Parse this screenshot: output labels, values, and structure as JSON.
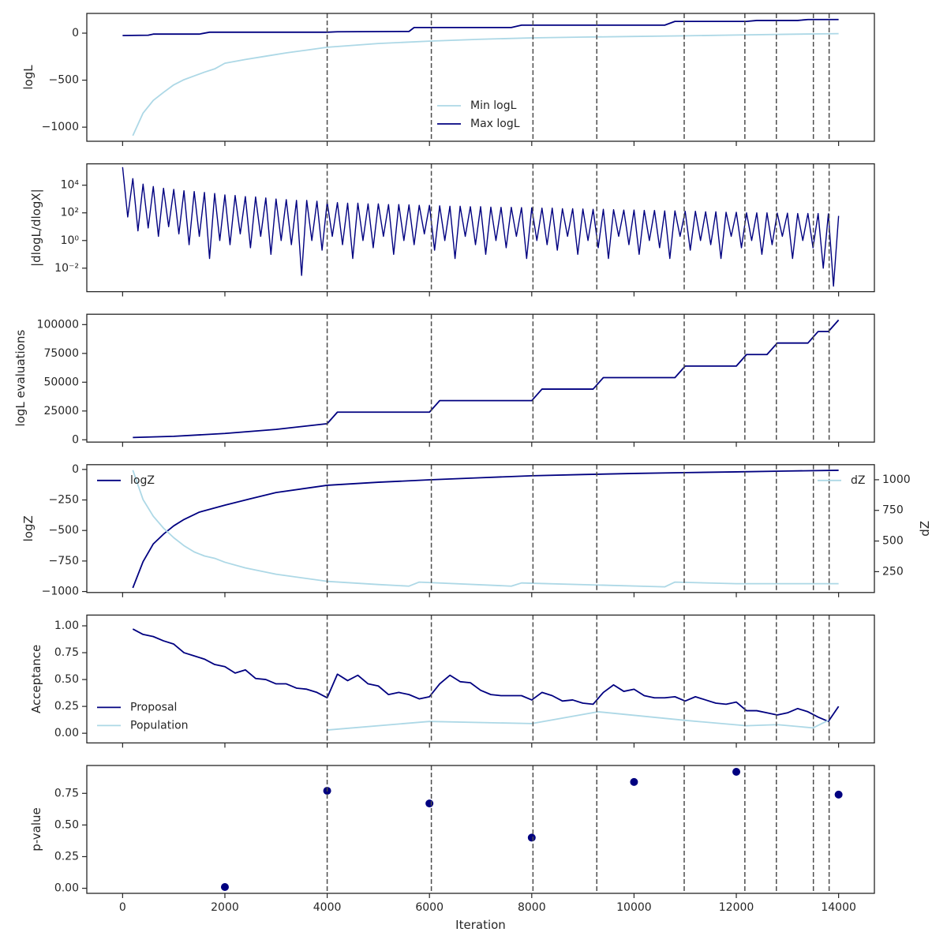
{
  "chart_data": [
    {
      "type": "line",
      "ylabel": "logL",
      "xlim": [
        -700,
        14700
      ],
      "xticks": [
        0,
        2000,
        4000,
        6000,
        8000,
        10000,
        12000,
        14000
      ],
      "ylim": [
        -1150,
        210
      ],
      "yticks": [
        {
          "value": -1000,
          "label": "−1000"
        },
        {
          "value": -500,
          "label": "−500"
        },
        0
      ],
      "vlines": [
        4000,
        6037,
        8024,
        9272,
        10981,
        12167,
        12783,
        13507,
        13815
      ],
      "vline_color": "#4d4d4d",
      "legend": "lower center",
      "series": [
        {
          "name": "Min logL",
          "color": "#add8e6",
          "x": [
            200,
            400,
            600,
            800,
            1000,
            1200,
            1400,
            1600,
            1800,
            2000,
            2400,
            2800,
            3200,
            3600,
            4000,
            5000,
            6000,
            7000,
            8000,
            9000,
            10000,
            11000,
            12000,
            13000,
            14000
          ],
          "values": [
            -1090,
            -850,
            -715,
            -630,
            -550,
            -495,
            -455,
            -415,
            -380,
            -320,
            -280,
            -245,
            -210,
            -180,
            -150,
            -110,
            -85,
            -65,
            -50,
            -42,
            -35,
            -28,
            -20,
            -12,
            -5
          ]
        },
        {
          "name": "Max logL",
          "color": "#000080",
          "x": [
            0,
            500,
            600,
            1500,
            1700,
            4000,
            4200,
            5600,
            5700,
            7600,
            7800,
            10600,
            10800,
            12200,
            12400,
            13200,
            13400,
            14000
          ],
          "values": [
            -25,
            -22,
            -10,
            -10,
            10,
            10,
            15,
            18,
            60,
            60,
            85,
            85,
            125,
            125,
            135,
            135,
            145,
            145
          ]
        }
      ]
    },
    {
      "type": "line",
      "ylabel": "|dlogL/dlogX|",
      "yscale": "log",
      "xlim": [
        -700,
        14700
      ],
      "xticks": [
        0,
        2000,
        4000,
        6000,
        8000,
        10000,
        12000,
        14000
      ],
      "ylim": [
        0.0002,
        350000
      ],
      "yticks": [
        {
          "value": 0.01,
          "label": "10⁻²"
        },
        {
          "value": 1,
          "label": "10⁰"
        },
        {
          "value": 100,
          "label": "10²"
        },
        {
          "value": 10000,
          "label": "10⁴"
        }
      ],
      "vlines": [
        4000,
        6037,
        8024,
        9272,
        10981,
        12167,
        12783,
        13507,
        13815
      ],
      "vline_color": "#4d4d4d",
      "series": [
        {
          "color": "#000080",
          "x": [
            0,
            100,
            200,
            300,
            400,
            500,
            600,
            700,
            800,
            900,
            1000,
            1100,
            1200,
            1300,
            1400,
            1500,
            1600,
            1700,
            1800,
            1900,
            2000,
            2100,
            2200,
            2300,
            2400,
            2500,
            2600,
            2700,
            2800,
            2900,
            3000,
            3100,
            3200,
            3300,
            3400,
            3500,
            3600,
            3700,
            3800,
            3900,
            4000,
            4100,
            4200,
            4300,
            4400,
            4500,
            4600,
            4700,
            4800,
            4900,
            5000,
            5100,
            5200,
            5300,
            5400,
            5500,
            5600,
            5700,
            5800,
            5900,
            6000,
            6100,
            6200,
            6300,
            6400,
            6500,
            6600,
            6700,
            6800,
            6900,
            7000,
            7100,
            7200,
            7300,
            7400,
            7500,
            7600,
            7700,
            7800,
            7900,
            8000,
            8100,
            8200,
            8300,
            8400,
            8500,
            8600,
            8700,
            8800,
            8900,
            9000,
            9100,
            9200,
            9300,
            9400,
            9500,
            9600,
            9700,
            9800,
            9900,
            10000,
            10100,
            10200,
            10300,
            10400,
            10500,
            10600,
            10700,
            10800,
            10900,
            11000,
            11100,
            11200,
            11300,
            11400,
            11500,
            11600,
            11700,
            11800,
            11900,
            12000,
            12100,
            12200,
            12300,
            12400,
            12500,
            12600,
            12700,
            12800,
            12900,
            13000,
            13100,
            13200,
            13300,
            13400,
            13500,
            13600,
            13700,
            13800,
            13900,
            14000
          ],
          "values": [
            200000,
            50,
            30000,
            5,
            12000,
            8,
            8000,
            2,
            6000,
            10,
            5000,
            3,
            4000,
            0.5,
            3500,
            2,
            3000,
            0.05,
            2500,
            1,
            2000,
            0.5,
            1800,
            3,
            1500,
            0.3,
            1400,
            2,
            1200,
            0.1,
            1000,
            1,
            900,
            0.5,
            800,
            0.003,
            800,
            1,
            700,
            0.2,
            600,
            2,
            550,
            0.5,
            500,
            0.05,
            500,
            1,
            450,
            0.3,
            450,
            2,
            400,
            0.1,
            400,
            1,
            380,
            0.5,
            350,
            3,
            350,
            0.2,
            320,
            1,
            300,
            0.05,
            300,
            2,
            280,
            0.5,
            280,
            0.1,
            260,
            1,
            250,
            0.3,
            250,
            2,
            240,
            0.05,
            230,
            1,
            220,
            0.5,
            220,
            0.2,
            200,
            2,
            200,
            0.1,
            190,
            1,
            180,
            0.3,
            180,
            0.05,
            170,
            2,
            160,
            0.5,
            160,
            0.1,
            150,
            1,
            150,
            0.3,
            140,
            0.05,
            140,
            2,
            130,
            0.2,
            130,
            1,
            120,
            0.5,
            120,
            0.05,
            110,
            2,
            110,
            0.3,
            100,
            1,
            100,
            0.1,
            100,
            0.5,
            95,
            2,
            95,
            0.05,
            90,
            1,
            90,
            0.3,
            90,
            0.01,
            85,
            0.0005,
            60
          ]
        }
      ]
    },
    {
      "type": "line",
      "ylabel": "logL evaluations",
      "xlim": [
        -700,
        14700
      ],
      "xticks": [
        0,
        2000,
        4000,
        6000,
        8000,
        10000,
        12000,
        14000
      ],
      "ylim": [
        -2000,
        109000
      ],
      "yticks": [
        0,
        25000,
        50000,
        75000,
        100000
      ],
      "vlines": [
        4000,
        6037,
        8024,
        9272,
        10981,
        12167,
        12783,
        13507,
        13815
      ],
      "vline_color": "#4d4d4d",
      "series": [
        {
          "color": "#000080",
          "x": [
            200,
            1000,
            2000,
            3000,
            3500,
            4000,
            4200,
            6000,
            6200,
            8000,
            8200,
            9200,
            9400,
            10800,
            11000,
            12000,
            12200,
            12600,
            12800,
            13400,
            13600,
            13800,
            14000
          ],
          "values": [
            2000,
            3000,
            5500,
            9000,
            11500,
            14000,
            24000,
            24000,
            34000,
            34000,
            44000,
            44000,
            54000,
            54000,
            64000,
            64000,
            74000,
            74000,
            84000,
            84000,
            94000,
            94000,
            104000
          ]
        }
      ]
    },
    {
      "type": "line",
      "ylabel": "logZ",
      "y2label": "dZ",
      "xlim": [
        -700,
        14700
      ],
      "xticks": [
        0,
        2000,
        4000,
        6000,
        8000,
        10000,
        12000,
        14000
      ],
      "ylim": [
        -1008,
        39
      ],
      "yticks": [
        {
          "value": -1000,
          "label": "−1000"
        },
        {
          "value": -750,
          "label": "−750"
        },
        {
          "value": -500,
          "label": "−500"
        },
        {
          "value": -250,
          "label": "−250"
        },
        0
      ],
      "y2lim": [
        80,
        1123
      ],
      "y2ticks": [
        250,
        500,
        750,
        1000
      ],
      "vlines": [
        4000,
        6037,
        8024,
        9272,
        10981,
        12167,
        12783,
        13507,
        13815
      ],
      "vline_color": "#4d4d4d",
      "legend": "upper left",
      "legend2": "upper right",
      "series": [
        {
          "name": "logZ",
          "color": "#000080",
          "x": [
            200,
            400,
            600,
            800,
            1000,
            1200,
            1500,
            2000,
            2500,
            3000,
            4000,
            5000,
            6000,
            7000,
            8000,
            9000,
            10000,
            11000,
            12000,
            13000,
            14000
          ],
          "values": [
            -970,
            -755,
            -610,
            -530,
            -462,
            -410,
            -350,
            -293,
            -240,
            -189,
            -130,
            -105,
            -85,
            -68,
            -52,
            -42,
            -33,
            -26,
            -20,
            -13,
            -7
          ]
        },
        {
          "name": "dZ",
          "color": "#add8e6",
          "axis": "y2",
          "x": [
            200,
            400,
            600,
            800,
            1000,
            1200,
            1400,
            1600,
            1800,
            2000,
            2400,
            3000,
            4000,
            5000,
            5600,
            5800,
            7600,
            7800,
            10600,
            10800,
            12000,
            12400,
            14000
          ],
          "values": [
            1078,
            838,
            702,
            605,
            527,
            462,
            411,
            378,
            359,
            327,
            281,
            229,
            171,
            145,
            132,
            165,
            132,
            158,
            126,
            165,
            152,
            152,
            152
          ]
        }
      ]
    },
    {
      "type": "line",
      "ylabel": "Acceptance",
      "xlim": [
        -700,
        14700
      ],
      "xticks": [
        0,
        2000,
        4000,
        6000,
        8000,
        10000,
        12000,
        14000
      ],
      "ylim": [
        -0.09,
        1.1
      ],
      "yticks": [
        {
          "value": 0,
          "label": "0.00"
        },
        {
          "value": 0.25,
          "label": "0.25"
        },
        {
          "value": 0.5,
          "label": "0.50"
        },
        {
          "value": 0.75,
          "label": "0.75"
        },
        {
          "value": 1,
          "label": "1.00"
        }
      ],
      "vlines": [
        4000,
        6037,
        8024,
        9272,
        10981,
        12167,
        12783,
        13507,
        13815
      ],
      "vline_color": "#4d4d4d",
      "legend": "lower left",
      "series": [
        {
          "name": "Proposal",
          "color": "#000080",
          "x": [
            200,
            400,
            600,
            800,
            1000,
            1200,
            1400,
            1600,
            1800,
            2000,
            2200,
            2400,
            2600,
            2800,
            3000,
            3200,
            3400,
            3600,
            3800,
            4000,
            4200,
            4400,
            4600,
            4800,
            5000,
            5200,
            5400,
            5600,
            5800,
            6000,
            6200,
            6400,
            6600,
            6800,
            7000,
            7200,
            7400,
            7600,
            7800,
            8000,
            8200,
            8400,
            8600,
            8800,
            9000,
            9200,
            9400,
            9600,
            9800,
            10000,
            10200,
            10400,
            10600,
            10800,
            11000,
            11200,
            11400,
            11600,
            11800,
            12000,
            12200,
            12400,
            12600,
            12800,
            13000,
            13200,
            13400,
            13600,
            13800,
            14000
          ],
          "values": [
            0.97,
            0.92,
            0.9,
            0.86,
            0.83,
            0.75,
            0.72,
            0.69,
            0.64,
            0.62,
            0.56,
            0.59,
            0.51,
            0.5,
            0.46,
            0.46,
            0.42,
            0.41,
            0.38,
            0.33,
            0.55,
            0.49,
            0.54,
            0.46,
            0.44,
            0.36,
            0.38,
            0.36,
            0.32,
            0.34,
            0.46,
            0.54,
            0.48,
            0.47,
            0.4,
            0.36,
            0.35,
            0.35,
            0.35,
            0.31,
            0.38,
            0.35,
            0.3,
            0.31,
            0.28,
            0.27,
            0.38,
            0.45,
            0.39,
            0.41,
            0.35,
            0.33,
            0.33,
            0.34,
            0.3,
            0.34,
            0.31,
            0.28,
            0.27,
            0.29,
            0.21,
            0.21,
            0.19,
            0.17,
            0.19,
            0.23,
            0.2,
            0.15,
            0.11,
            0.25
          ]
        },
        {
          "name": "Population",
          "color": "#add8e6",
          "x": [
            4000,
            6000,
            8000,
            9300,
            11000,
            12200,
            12800,
            13500,
            13800
          ],
          "values": [
            0.03,
            0.11,
            0.09,
            0.2,
            0.12,
            0.07,
            0.08,
            0.05,
            0.12
          ]
        }
      ]
    },
    {
      "type": "scatter",
      "ylabel": "p-value",
      "xlabel": "Iteration",
      "xlim": [
        -700,
        14700
      ],
      "xticks": [
        0,
        2000,
        4000,
        6000,
        8000,
        10000,
        12000,
        14000
      ],
      "ylim": [
        -0.04,
        0.97
      ],
      "yticks": [
        {
          "value": 0,
          "label": "0.00"
        },
        {
          "value": 0.25,
          "label": "0.25"
        },
        {
          "value": 0.5,
          "label": "0.50"
        },
        {
          "value": 0.75,
          "label": "0.75"
        }
      ],
      "vlines": [
        4000,
        6037,
        8024,
        9272,
        10981,
        12167,
        12783,
        13507,
        13815
      ],
      "vline_color": "#4d4d4d",
      "series": [
        {
          "color": "#000080",
          "x": [
            2000,
            4000,
            6000,
            8000,
            10000,
            12000,
            14000
          ],
          "values": [
            0.01,
            0.77,
            0.67,
            0.4,
            0.84,
            0.92,
            0.74
          ]
        }
      ]
    }
  ]
}
